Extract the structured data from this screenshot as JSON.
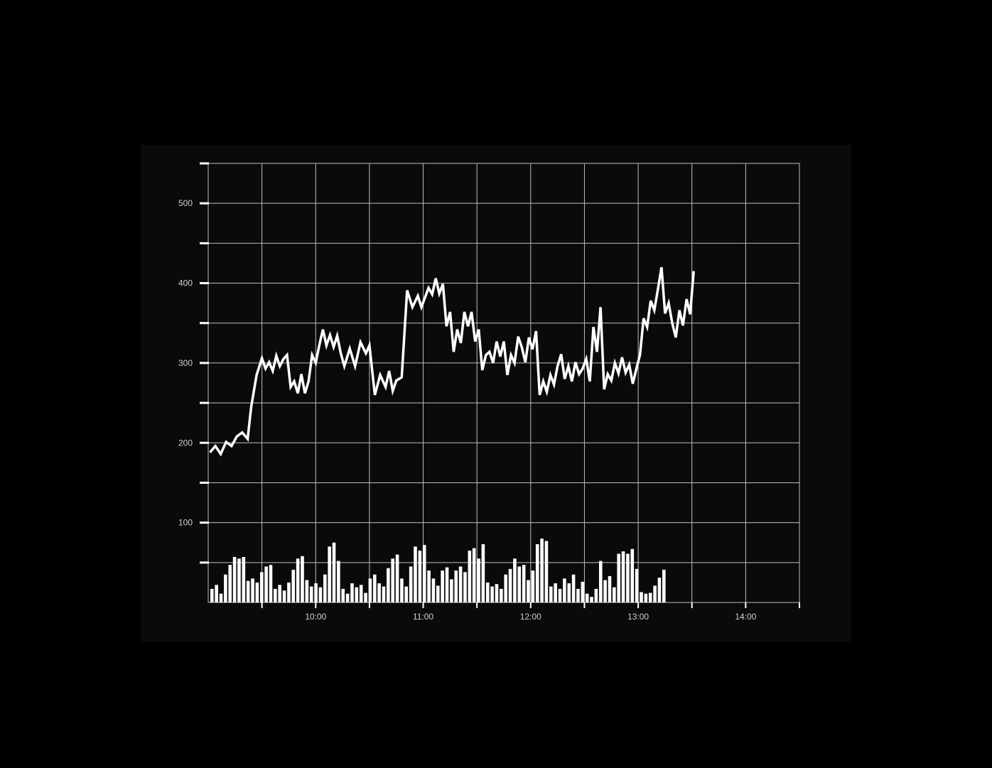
{
  "colors": {
    "page_background": "#000000",
    "panel_background": "#0a0a0c",
    "line": "#ffffff",
    "bars": "#ffffff",
    "grid": "#bfbfbf",
    "tick_text": "#d0d0d0"
  },
  "chart_data": {
    "type": "line",
    "title": "",
    "xlabel": "",
    "ylabel": "",
    "x_tick_labels": [
      "10:00",
      "11:00",
      "12:00",
      "13:00",
      "14:00"
    ],
    "y_tick_labels": [
      "100",
      "200",
      "300",
      "400",
      "500"
    ],
    "y_ticks": [
      100,
      200,
      300,
      400,
      500
    ],
    "ylim": [
      0,
      550
    ],
    "xlim": [
      "09:00",
      "14:30"
    ],
    "grid": true,
    "legend": "none",
    "series": [
      {
        "type": "line",
        "x": [
          "09:01",
          "09:04",
          "09:07",
          "09:10",
          "09:13",
          "09:16",
          "09:19",
          "09:22",
          "09:24",
          "09:27",
          "09:30",
          "09:32",
          "09:34",
          "09:36",
          "09:38",
          "09:40",
          "09:42",
          "09:44",
          "09:46",
          "09:48",
          "09:50",
          "09:52",
          "09:54",
          "09:56",
          "09:58",
          "10:00",
          "10:02",
          "10:04",
          "10:06",
          "10:08",
          "10:10",
          "10:12",
          "10:14",
          "10:16",
          "10:19",
          "10:22",
          "10:25",
          "10:28",
          "10:30",
          "10:33",
          "10:36",
          "10:39",
          "10:41",
          "10:43",
          "10:45",
          "10:48",
          "10:51",
          "10:54",
          "10:57",
          "10:59",
          "11:01",
          "11:03",
          "11:05",
          "11:07",
          "11:09",
          "11:11",
          "11:13",
          "11:15",
          "11:17",
          "11:19",
          "11:21",
          "11:23",
          "11:25",
          "11:27",
          "11:29",
          "11:31",
          "11:33",
          "11:35",
          "11:37",
          "11:39",
          "11:41",
          "11:43",
          "11:45",
          "11:47",
          "11:49",
          "11:51",
          "11:53",
          "11:55",
          "11:57",
          "11:59",
          "12:01",
          "12:03",
          "12:05",
          "12:07",
          "12:09",
          "12:11",
          "12:13",
          "12:15",
          "12:17",
          "12:19",
          "12:21",
          "12:23",
          "12:25",
          "12:27",
          "12:29",
          "12:31",
          "12:33",
          "12:35",
          "12:37",
          "12:39",
          "12:41",
          "12:43",
          "12:45",
          "12:47",
          "12:49",
          "12:51",
          "12:53",
          "12:55",
          "12:57",
          "12:59",
          "13:01",
          "13:03",
          "13:05",
          "13:07",
          "13:09",
          "13:11",
          "13:13",
          "13:15",
          "13:17",
          "13:19",
          "13:21",
          "13:23",
          "13:25",
          "13:27",
          "13:29",
          "13:31",
          "13:33",
          "13:35"
        ],
        "values": [
          188,
          196,
          186,
          201,
          196,
          208,
          213,
          205,
          245,
          285,
          306,
          293,
          301,
          290,
          309,
          296,
          305,
          310,
          270,
          277,
          262,
          286,
          262,
          277,
          310,
          300,
          322,
          342,
          322,
          335,
          320,
          334,
          312,
          296,
          318,
          296,
          326,
          312,
          322,
          260,
          285,
          270,
          290,
          265,
          278,
          282,
          391,
          370,
          384,
          370,
          382,
          394,
          386,
          406,
          387,
          399,
          346,
          364,
          314,
          342,
          325,
          364,
          346,
          364,
          327,
          342,
          291,
          310,
          314,
          300,
          327,
          308,
          327,
          285,
          310,
          300,
          333,
          320,
          301,
          332,
          317,
          340,
          260,
          277,
          264,
          285,
          273,
          296,
          311,
          280,
          296,
          277,
          301,
          286,
          293,
          305,
          277,
          345,
          314,
          370,
          267,
          286,
          278,
          300,
          287,
          307,
          288,
          298,
          274,
          293,
          310,
          356,
          345,
          378,
          366,
          392,
          420,
          362,
          375,
          350,
          332,
          366,
          347,
          380,
          361,
          415,
          0,
          0
        ],
        "valid_points": 126
      },
      {
        "type": "bar",
        "name": "",
        "values": [
          17,
          22,
          11,
          35,
          47,
          57,
          55,
          57,
          27,
          30,
          25,
          38,
          45,
          47,
          17,
          22,
          15,
          25,
          41,
          55,
          58,
          28,
          20,
          24,
          19,
          35,
          70,
          75,
          52,
          17,
          11,
          24,
          19,
          22,
          12,
          30,
          35,
          24,
          20,
          43,
          55,
          60,
          30,
          20,
          45,
          70,
          65,
          72,
          40,
          30,
          21,
          40,
          44,
          29,
          40,
          45,
          38,
          65,
          68,
          55,
          73,
          25,
          20,
          23,
          17,
          35,
          42,
          55,
          45,
          47,
          28,
          40,
          73,
          80,
          77,
          20,
          24,
          17,
          30,
          24,
          35,
          17,
          26,
          11,
          7,
          17,
          52,
          28,
          33,
          19,
          61,
          64,
          61,
          67,
          42,
          13,
          11,
          12,
          21,
          31,
          41
        ]
      }
    ]
  }
}
